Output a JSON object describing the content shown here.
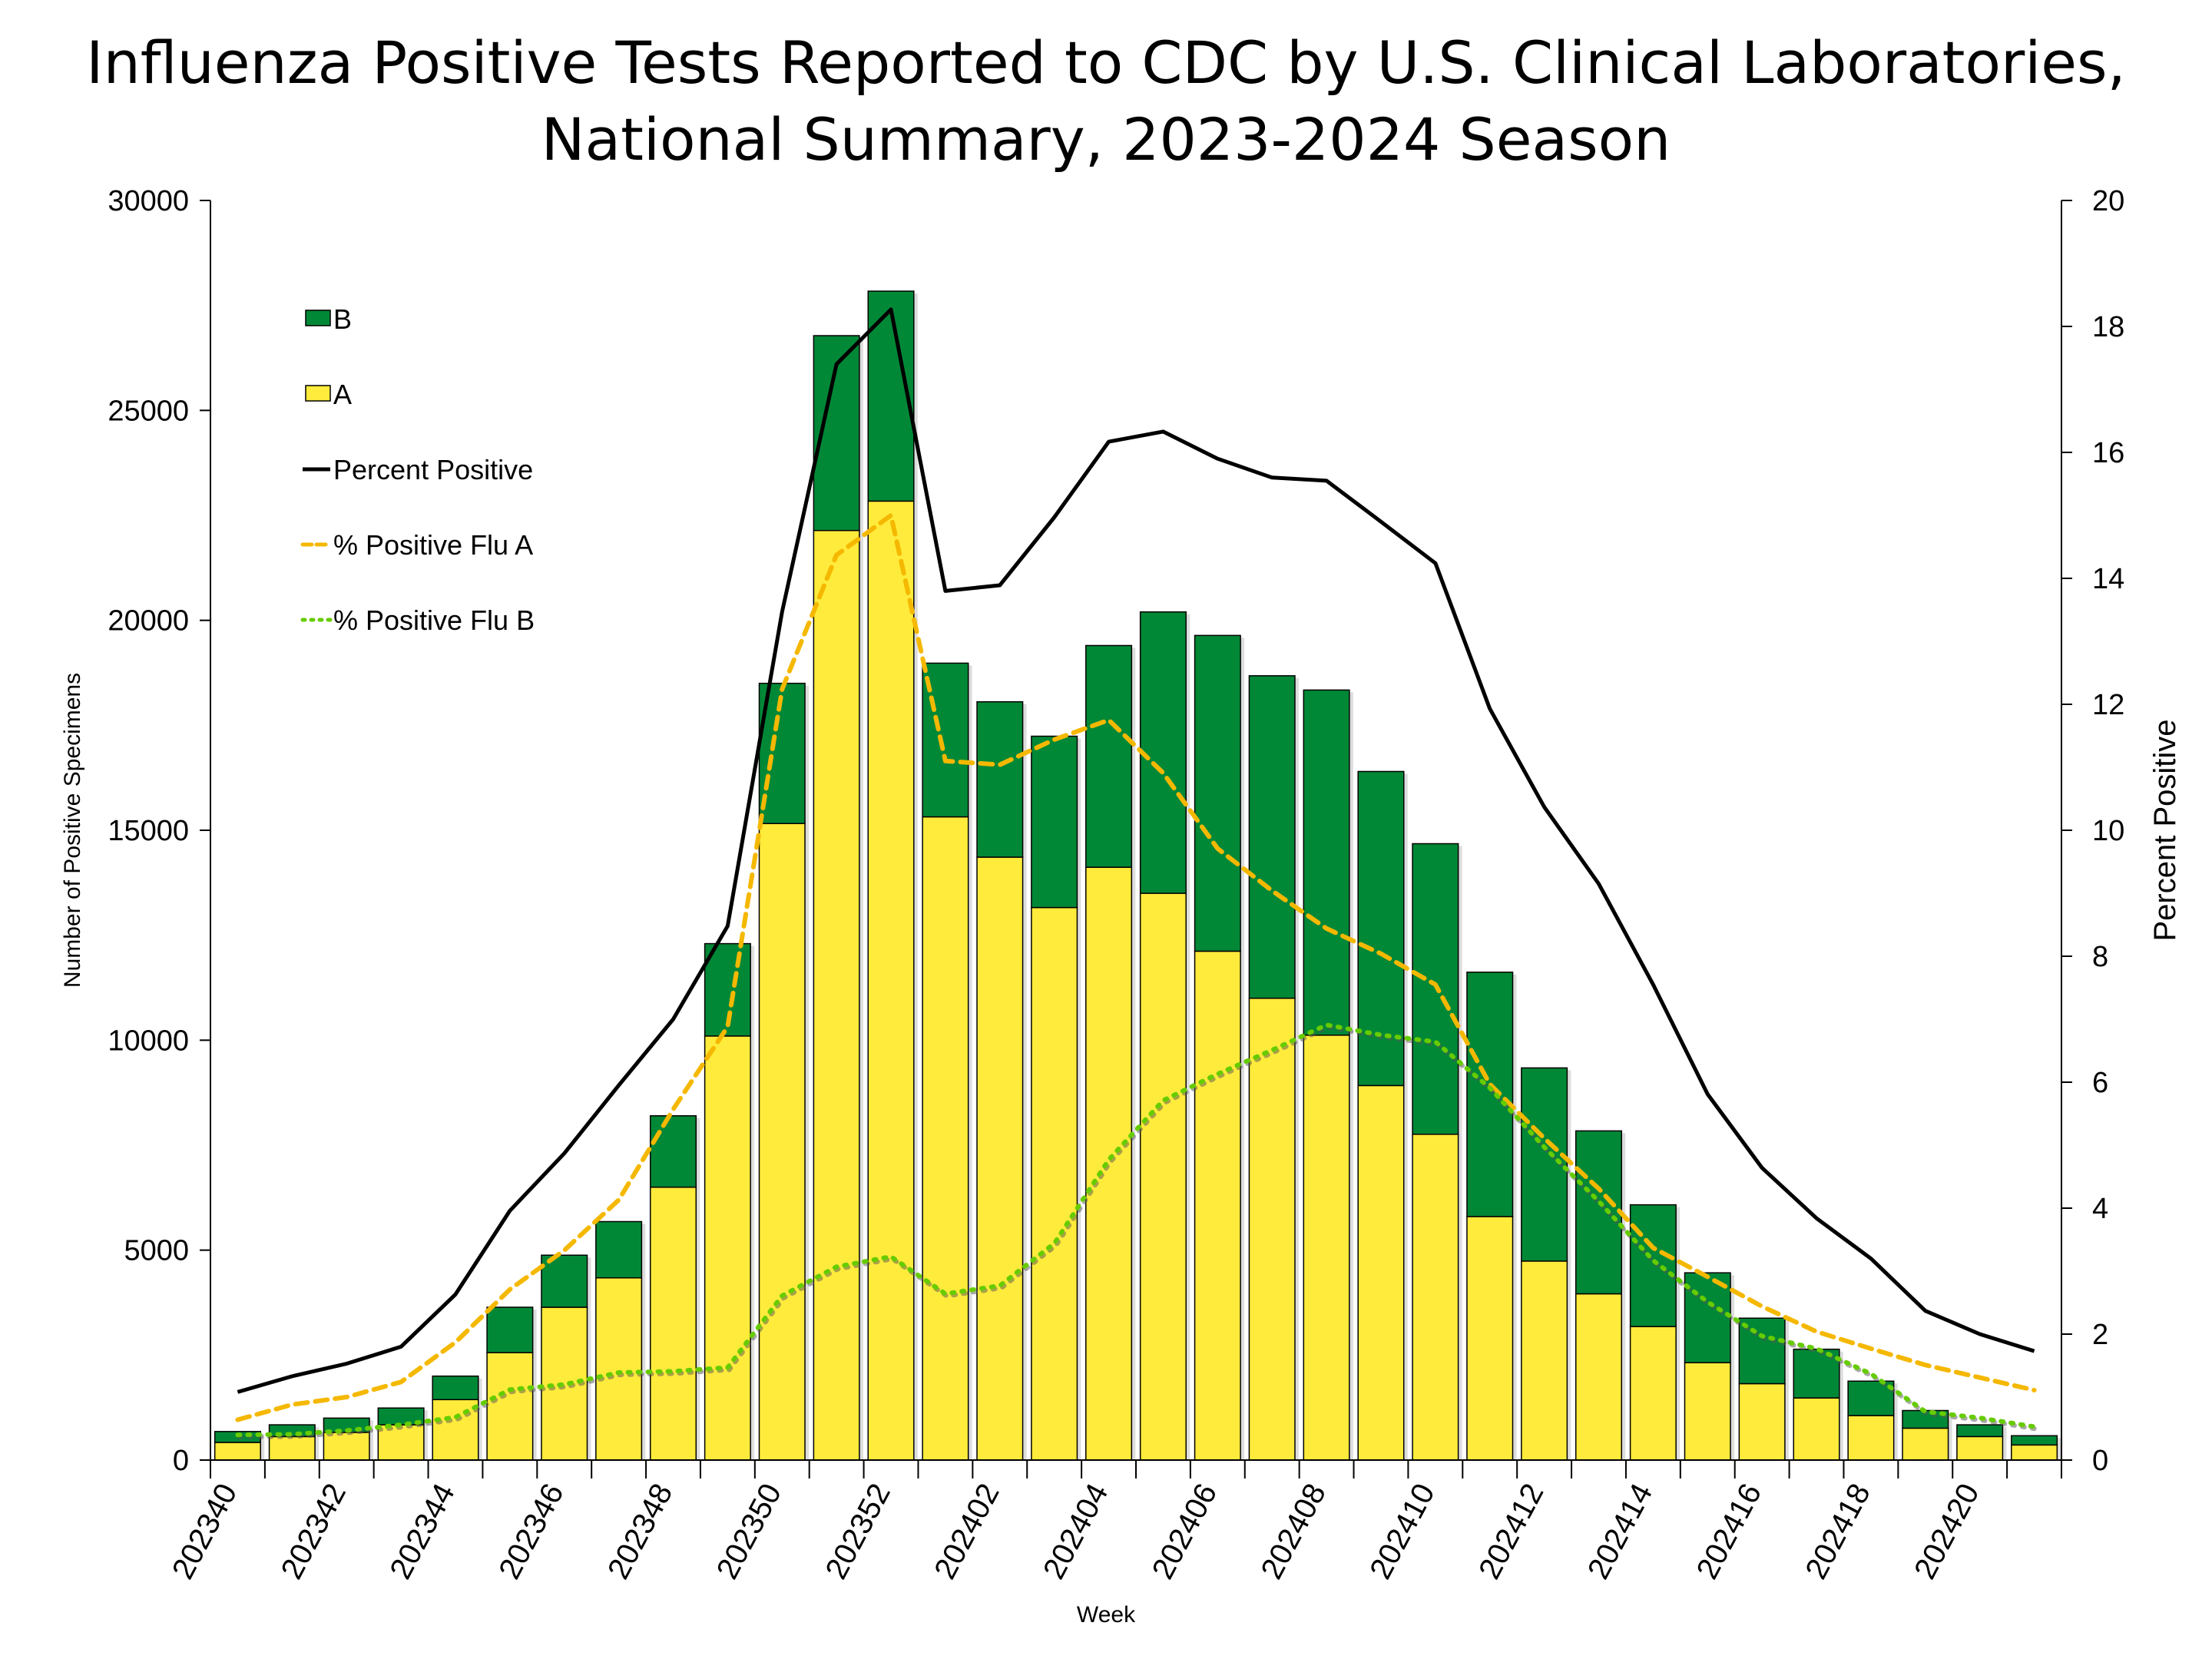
{
  "chart_data": {
    "type": "bar",
    "title_line1": "Influenza Positive Tests Reported to CDC by U.S. Clinical Laboratories,",
    "title_line2": "National Summary, 2023-2024 Season",
    "xlabel": "Week",
    "ylabel": "Number of Positive Specimens",
    "y2label": "Percent Positive",
    "ylim": [
      0,
      30000
    ],
    "y2lim": [
      0,
      20
    ],
    "yticks": [
      "0",
      "5000",
      "10000",
      "15000",
      "20000",
      "25000",
      "30000"
    ],
    "y2ticks": [
      "0",
      "2",
      "4",
      "6",
      "8",
      "10",
      "12",
      "14",
      "16",
      "18",
      "20"
    ],
    "legend_placement": "top-left",
    "grid": false,
    "categories": [
      "202340",
      "202341",
      "202342",
      "202343",
      "202344",
      "202345",
      "202346",
      "202347",
      "202348",
      "202349",
      "202350",
      "202351",
      "202352",
      "202401",
      "202402",
      "202403",
      "202404",
      "202405",
      "202406",
      "202407",
      "202408",
      "202409",
      "202410",
      "202411",
      "202412",
      "202413",
      "202414",
      "202415",
      "202416",
      "202417",
      "202418",
      "202419",
      "202420",
      "202421"
    ],
    "xtick_labels": [
      "202340",
      "202342",
      "202344",
      "202346",
      "202348",
      "202350",
      "202352",
      "202402",
      "202404",
      "202406",
      "202408",
      "202410",
      "202412",
      "202414",
      "202416",
      "202418",
      "202420"
    ],
    "bar_series": [
      {
        "name": "A",
        "stack": "bottom",
        "color": "#ffeb3b",
        "values": [
          420,
          560,
          660,
          840,
          1440,
          2560,
          3640,
          4340,
          6500,
          10100,
          15160,
          22140,
          22840,
          15320,
          14360,
          13160,
          14120,
          13500,
          12120,
          11000,
          10120,
          8920,
          7760,
          5800,
          4740,
          3960,
          3180,
          2320,
          1820,
          1480,
          1060,
          760,
          560,
          360
        ]
      },
      {
        "name": "B",
        "stack": "top",
        "color": "#008837",
        "values": [
          260,
          280,
          340,
          400,
          560,
          1080,
          1240,
          1340,
          1700,
          2200,
          3340,
          4640,
          5000,
          3660,
          3700,
          4080,
          5280,
          6700,
          7520,
          7680,
          8220,
          7480,
          6920,
          5820,
          4600,
          3880,
          2900,
          2140,
          1560,
          1160,
          820,
          420,
          280,
          220
        ]
      }
    ],
    "line_series": [
      {
        "name": "Percent Positive",
        "axis": "right",
        "color": "#000000",
        "style": "solid",
        "values": [
          1.08,
          1.33,
          1.53,
          1.8,
          2.63,
          3.96,
          4.87,
          5.95,
          7.0,
          8.48,
          13.47,
          17.4,
          18.27,
          13.8,
          13.89,
          14.97,
          16.17,
          16.33,
          15.9,
          15.6,
          15.55,
          14.9,
          14.24,
          11.93,
          10.37,
          9.15,
          7.55,
          5.81,
          4.64,
          3.84,
          3.2,
          2.37,
          2.0,
          1.73
        ]
      },
      {
        "name": "% Positive Flu A",
        "axis": "right",
        "color": "#f5b800",
        "style": "dashed",
        "values": [
          0.64,
          0.88,
          1.0,
          1.24,
          1.87,
          2.71,
          3.33,
          4.13,
          5.57,
          6.88,
          12.24,
          14.37,
          15.0,
          11.1,
          11.04,
          11.44,
          11.75,
          10.91,
          9.71,
          9.04,
          8.44,
          8.04,
          7.55,
          5.97,
          5.11,
          4.31,
          3.37,
          2.91,
          2.44,
          2.04,
          1.77,
          1.51,
          1.31,
          1.11
        ]
      },
      {
        "name": "% Positive Flu B",
        "axis": "right",
        "color": "#66cc00",
        "style": "dotted",
        "values": [
          0.4,
          0.41,
          0.47,
          0.56,
          0.68,
          1.12,
          1.2,
          1.39,
          1.41,
          1.47,
          2.61,
          3.07,
          3.23,
          2.64,
          2.77,
          3.44,
          4.77,
          5.71,
          6.13,
          6.51,
          6.91,
          6.75,
          6.64,
          5.91,
          4.97,
          4.11,
          3.17,
          2.51,
          1.97,
          1.77,
          1.37,
          0.77,
          0.67,
          0.53
        ]
      }
    ],
    "legend": [
      "B",
      "A",
      "Percent Positive",
      "% Positive Flu A",
      "% Positive Flu B"
    ]
  }
}
